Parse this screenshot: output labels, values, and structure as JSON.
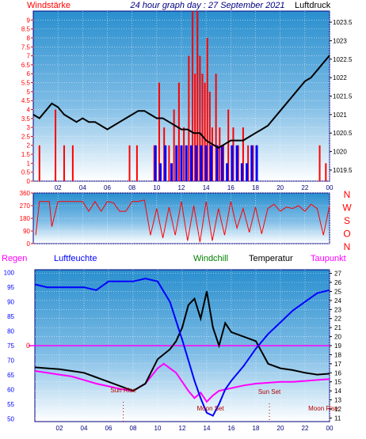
{
  "header": {
    "left_label": "Windstärke",
    "title": "24 hour graph day : 27 September 2021",
    "right_label": "Luftdruck"
  },
  "colors": {
    "bg": "#ffffff",
    "frame": "#000080",
    "red": "#ff0000",
    "blue": "#0000ff",
    "black": "#000000",
    "magenta": "#ff00ff",
    "green": "#008000",
    "dark_red": "#b00000",
    "sky_top": "#2a8fce",
    "sky_bottom": "#ffffff"
  },
  "x_axis": {
    "ticks": [
      "02",
      "04",
      "06",
      "08",
      "10",
      "12",
      "14",
      "16",
      "18",
      "20",
      "22",
      "00"
    ],
    "hours": [
      2,
      4,
      6,
      8,
      10,
      12,
      14,
      16,
      18,
      20,
      22,
      24
    ]
  },
  "legend": {
    "regen": "Regen",
    "luftfeuchte": "Luftfeuchte",
    "windchill": "Windchill",
    "temperatur": "Temperatur",
    "taupunkt": "Taupunkt"
  },
  "direction_labels": [
    "N",
    "W",
    "S",
    "O",
    "N"
  ],
  "sun_moon": {
    "sun_rise": "Sun Rise",
    "moon_set": "Moon Set",
    "sun_set": "Sun Set",
    "moon_rise": "Moon Rise",
    "sun_rise_hour": 7.2,
    "moon_set_hour": 14.3,
    "sun_set_hour": 19.1,
    "moon_rise_hour": 23.5
  },
  "chart_data": [
    {
      "type": "bar",
      "panel": "wind",
      "xlim": [
        0,
        24
      ],
      "left_axis": {
        "label": "Windstärke",
        "ticks": [
          0,
          0.5,
          1,
          1.5,
          2,
          2.5,
          3,
          3.5,
          4,
          4.5,
          5,
          5.5,
          6,
          6.5,
          7,
          7.5,
          8,
          8.5,
          9
        ],
        "ylim": [
          0,
          9.5
        ]
      },
      "right_axis": {
        "label": "Luftdruck",
        "ticks": [
          1019.5,
          1020,
          1020.5,
          1021,
          1021.5,
          1022,
          1022.5,
          1023,
          1023.5
        ],
        "ylim": [
          1019.2,
          1023.8
        ]
      },
      "series": [
        {
          "name": "Luftdruck",
          "type": "line",
          "x": [
            0,
            0.5,
            1,
            1.5,
            2,
            2.5,
            3,
            3.5,
            4,
            4.5,
            5,
            5.5,
            6,
            6.5,
            7,
            7.5,
            8,
            8.5,
            9,
            9.5,
            10,
            10.5,
            11,
            11.5,
            12,
            12.5,
            13,
            13.5,
            14,
            14.5,
            15,
            15.5,
            16,
            16.5,
            17,
            17.5,
            18,
            18.5,
            19,
            19.5,
            20,
            20.5,
            21,
            21.5,
            22,
            22.5,
            23,
            23.5,
            24
          ],
          "values": [
            1021.0,
            1020.9,
            1021.1,
            1021.3,
            1021.2,
            1021.0,
            1020.9,
            1020.8,
            1020.9,
            1020.8,
            1020.8,
            1020.7,
            1020.6,
            1020.7,
            1020.8,
            1020.9,
            1021.0,
            1021.1,
            1021.1,
            1021.0,
            1020.9,
            1020.9,
            1020.8,
            1020.7,
            1020.6,
            1020.6,
            1020.5,
            1020.5,
            1020.3,
            1020.2,
            1020.1,
            1020.2,
            1020.3,
            1020.3,
            1020.3,
            1020.4,
            1020.5,
            1020.6,
            1020.7,
            1020.9,
            1021.1,
            1021.3,
            1021.5,
            1021.7,
            1021.9,
            1022.0,
            1022.2,
            1022.4,
            1022.6
          ]
        },
        {
          "name": "Windstärke Böen",
          "type": "bar",
          "x": [
            0.5,
            1.8,
            2.5,
            3.2,
            7.8,
            8.4,
            9.8,
            10.2,
            10.6,
            11.0,
            11.4,
            11.8,
            12.2,
            12.6,
            12.9,
            13.1,
            13.3,
            13.5,
            13.7,
            13.9,
            14.1,
            14.3,
            14.5,
            14.8,
            15.1,
            15.4,
            15.8,
            16.2,
            16.6,
            17.0,
            17.4,
            17.8,
            18.1,
            23.2,
            23.7
          ],
          "values": [
            2,
            4,
            2,
            2,
            2,
            2,
            2,
            5.5,
            3,
            2,
            4,
            5.5,
            3,
            7,
            9.5,
            6,
            9.5,
            7,
            6,
            5.5,
            8,
            5,
            3,
            6,
            3,
            2,
            4,
            3,
            2,
            3,
            2,
            2,
            2,
            2,
            1
          ]
        },
        {
          "name": "Windstärke Mittel",
          "type": "bar",
          "x": [
            9.9,
            10.3,
            10.7,
            11.2,
            11.6,
            12.0,
            12.4,
            12.8,
            13.2,
            13.6,
            14.0,
            14.4,
            14.9,
            15.3,
            15.7,
            16.1,
            16.5,
            16.9,
            17.3,
            17.7,
            18.1
          ],
          "values": [
            2,
            1,
            2,
            1,
            2,
            2,
            2,
            2,
            2,
            2,
            2,
            2,
            2,
            2,
            1,
            2,
            2,
            1,
            1,
            2,
            2
          ]
        }
      ]
    },
    {
      "type": "line",
      "panel": "wind_direction",
      "xlim": [
        0,
        24
      ],
      "left_axis": {
        "ticks": [
          0,
          90,
          180,
          270,
          360
        ],
        "ylim": [
          0,
          360
        ]
      },
      "right_axis": {
        "labels": [
          "N",
          "W",
          "S",
          "O",
          "N"
        ]
      },
      "series": [
        {
          "name": "Windrichtung",
          "x": [
            0.2,
            0.5,
            1,
            1.3,
            1.5,
            2,
            2.5,
            3,
            3.5,
            4,
            4.5,
            5,
            5.5,
            6,
            6.5,
            7,
            7.5,
            8,
            8.5,
            9,
            9.5,
            10,
            10.5,
            11,
            11.5,
            12,
            12.5,
            13,
            13.5,
            14,
            14.5,
            15,
            15.5,
            16,
            16.5,
            17,
            17.5,
            18,
            18.5,
            19,
            19.5,
            20,
            20.5,
            21,
            21.5,
            22,
            22.5,
            23,
            23.5,
            24
          ],
          "values": [
            60,
            300,
            300,
            300,
            120,
            300,
            300,
            300,
            300,
            300,
            230,
            300,
            230,
            300,
            290,
            230,
            230,
            300,
            300,
            310,
            60,
            250,
            40,
            260,
            60,
            300,
            20,
            270,
            10,
            300,
            20,
            250,
            60,
            300,
            110,
            250,
            80,
            260,
            70,
            250,
            280,
            230,
            260,
            250,
            270,
            230,
            280,
            250,
            60,
            270
          ]
        }
      ]
    },
    {
      "type": "line",
      "panel": "temperature",
      "xlim": [
        0,
        24
      ],
      "left_axis": {
        "label": "Luftfeuchte",
        "ticks": [
          50,
          55,
          60,
          65,
          70,
          75,
          80,
          85,
          90,
          95,
          100
        ],
        "ylim": [
          49,
          101
        ]
      },
      "right_axis": {
        "label": "Temperatur",
        "ticks": [
          11,
          12,
          13,
          14,
          15,
          16,
          17,
          18,
          19,
          20,
          21,
          22,
          23,
          24,
          25,
          26,
          27
        ],
        "ylim": [
          10.6,
          27.4
        ]
      },
      "inner_label": "0",
      "series": [
        {
          "name": "Luftfeuchte",
          "axis": "left",
          "x": [
            0,
            1,
            2,
            3,
            4,
            5,
            6,
            7,
            8,
            9,
            10,
            11,
            12,
            12.5,
            13,
            13.5,
            14,
            14.5,
            15,
            15.5,
            16,
            17,
            18,
            19,
            20,
            21,
            22,
            23,
            24
          ],
          "values": [
            96,
            95,
            95,
            95,
            95,
            94,
            97,
            97,
            97,
            98,
            97,
            90,
            77,
            70,
            63,
            57,
            52,
            51,
            55,
            60,
            63,
            68,
            74,
            79,
            83,
            87,
            90,
            93,
            94
          ]
        },
        {
          "name": "Temperatur",
          "axis": "right",
          "x": [
            0,
            1,
            2,
            3,
            4,
            5,
            6,
            7,
            8,
            9,
            10,
            11,
            11.5,
            12,
            12.5,
            13,
            13.5,
            14,
            14.5,
            15,
            15.5,
            16,
            17,
            18,
            19,
            20,
            21,
            22,
            23,
            24
          ],
          "values": [
            16.6,
            16.5,
            16.4,
            16.2,
            16.0,
            15.5,
            15.0,
            14.5,
            14.0,
            14.8,
            17.5,
            18.6,
            19.5,
            21.0,
            23.5,
            24.2,
            22.0,
            25.0,
            21.0,
            19.0,
            21.5,
            20.5,
            20.0,
            19.5,
            17.0,
            16.5,
            16.3,
            16.0,
            15.8,
            15.9
          ]
        },
        {
          "name": "Taupunkt",
          "axis": "right",
          "x": [
            0,
            1,
            2,
            3,
            4,
            5,
            6,
            7,
            8,
            9,
            10,
            10.5,
            11,
            11.5,
            12,
            12.5,
            13,
            13.5,
            14,
            14.5,
            15,
            16,
            17,
            18,
            19,
            20,
            21,
            22,
            23,
            24
          ],
          "values": [
            16.2,
            16.0,
            15.8,
            15.6,
            15.2,
            14.8,
            14.5,
            14.2,
            14.0,
            14.8,
            16.5,
            17.0,
            16.5,
            16.0,
            15.0,
            14.0,
            13.2,
            13.8,
            12.8,
            13.5,
            14.0,
            14.3,
            14.6,
            14.8,
            14.9,
            15.0,
            15.0,
            15.1,
            15.2,
            15.3
          ]
        },
        {
          "name": "Windchill",
          "axis": "right",
          "x": [
            0,
            6,
            7,
            8,
            9,
            10,
            11,
            12,
            13,
            14,
            15,
            16,
            17,
            18,
            19,
            20,
            24
          ],
          "values": [
            16.6,
            15.0,
            14.5,
            14.0,
            14.8,
            17.5,
            18.6,
            21.0,
            24.2,
            25.0,
            19.0,
            20.5,
            20.0,
            19.5,
            17.0,
            16.5,
            15.9
          ]
        }
      ]
    }
  ]
}
